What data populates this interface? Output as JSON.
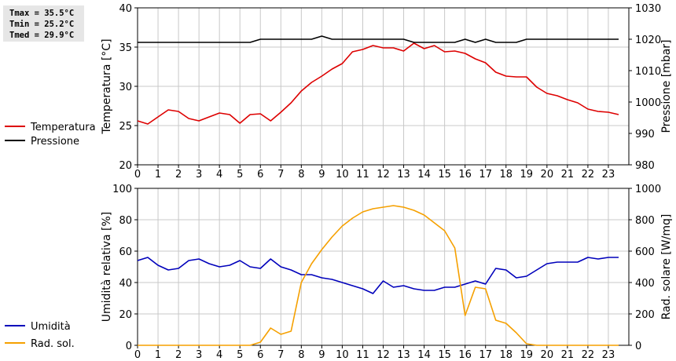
{
  "stats": {
    "tmax": "Tmax = 35.5°C",
    "tmin": "Tmin = 25.2°C",
    "tmed": "Tmed = 29.9°C"
  },
  "colors": {
    "temperature": "#dd0000",
    "pressure": "#000000",
    "humidity": "#0000bb",
    "solar": "#f5a000",
    "grid": "#c8c8c8"
  },
  "chart_data": [
    {
      "type": "line",
      "ylabel": "Temperatura [°C]",
      "y2label": "Pressione [mbar]",
      "xlim": [
        0,
        24
      ],
      "ylim": [
        20,
        40
      ],
      "y2lim": [
        980,
        1030
      ],
      "xticks": [
        0,
        1,
        2,
        3,
        4,
        5,
        6,
        7,
        8,
        9,
        10,
        11,
        12,
        13,
        14,
        15,
        16,
        17,
        18,
        19,
        20,
        21,
        22,
        23
      ],
      "yticks": [
        20,
        25,
        30,
        35,
        40
      ],
      "y2ticks": [
        980,
        990,
        1000,
        1010,
        1020,
        1030
      ],
      "grid": true,
      "legend": "left",
      "series": [
        {
          "name": "Temperatura",
          "axis": "left",
          "x": [
            0,
            0.5,
            1,
            1.5,
            2,
            2.5,
            3,
            3.5,
            4,
            4.5,
            5,
            5.5,
            6,
            6.5,
            7,
            7.5,
            8,
            8.5,
            9,
            9.5,
            10,
            10.5,
            11,
            11.5,
            12,
            12.5,
            13,
            13.5,
            14,
            14.5,
            15,
            15.5,
            16,
            16.5,
            17,
            17.5,
            18,
            18.5,
            19,
            19.5,
            20,
            20.5,
            21,
            21.5,
            22,
            22.5,
            23,
            23.5
          ],
          "y": [
            25.6,
            25.2,
            26.1,
            27.0,
            26.8,
            25.9,
            25.6,
            26.1,
            26.6,
            26.4,
            25.3,
            26.4,
            26.5,
            25.6,
            26.7,
            27.9,
            29.4,
            30.5,
            31.3,
            32.2,
            32.9,
            34.4,
            34.7,
            35.2,
            34.9,
            34.9,
            34.5,
            35.5,
            34.8,
            35.2,
            34.4,
            34.5,
            34.2,
            33.5,
            33.0,
            31.8,
            31.3,
            31.2,
            31.2,
            29.9,
            29.1,
            28.8,
            28.3,
            27.9,
            27.1,
            26.8,
            26.7,
            26.4
          ]
        },
        {
          "name": "Pressione",
          "axis": "right",
          "x": [
            0,
            0.5,
            1,
            1.5,
            2,
            2.5,
            3,
            3.5,
            4,
            4.5,
            5,
            5.5,
            6,
            6.5,
            7,
            7.5,
            8,
            8.5,
            9,
            9.5,
            10,
            10.5,
            11,
            11.5,
            12,
            12.5,
            13,
            13.5,
            14,
            14.5,
            15,
            15.5,
            16,
            16.5,
            17,
            17.5,
            18,
            18.5,
            19,
            19.5,
            20,
            20.5,
            21,
            21.5,
            22,
            22.5,
            23,
            23.5
          ],
          "y": [
            1019,
            1019,
            1019,
            1019,
            1019,
            1019,
            1019,
            1019,
            1019,
            1019,
            1019,
            1019,
            1020,
            1020,
            1020,
            1020,
            1020,
            1020,
            1021,
            1020,
            1020,
            1020,
            1020,
            1020,
            1020,
            1020,
            1020,
            1019,
            1019,
            1019,
            1019,
            1019,
            1020,
            1019,
            1020,
            1019,
            1019,
            1019,
            1020,
            1020,
            1020,
            1020,
            1020,
            1020,
            1020,
            1020,
            1020,
            1020
          ]
        }
      ]
    },
    {
      "type": "line",
      "ylabel": "Umidità relativa [%]",
      "y2label": "Rad. solare [W/mq]",
      "xlim": [
        0,
        24
      ],
      "ylim": [
        0,
        100
      ],
      "y2lim": [
        0,
        1000
      ],
      "xticks": [
        0,
        1,
        2,
        3,
        4,
        5,
        6,
        7,
        8,
        9,
        10,
        11,
        12,
        13,
        14,
        15,
        16,
        17,
        18,
        19,
        20,
        21,
        22,
        23
      ],
      "yticks": [
        0,
        20,
        40,
        60,
        80,
        100
      ],
      "y2ticks": [
        0,
        200,
        400,
        600,
        800,
        1000
      ],
      "grid": true,
      "legend": "left",
      "series": [
        {
          "name": "Umidità",
          "axis": "left",
          "x": [
            0,
            0.5,
            1,
            1.5,
            2,
            2.5,
            3,
            3.5,
            4,
            4.5,
            5,
            5.5,
            6,
            6.5,
            7,
            7.5,
            8,
            8.5,
            9,
            9.5,
            10,
            10.5,
            11,
            11.5,
            12,
            12.5,
            13,
            13.5,
            14,
            14.5,
            15,
            15.5,
            16,
            16.5,
            17,
            17.5,
            18,
            18.5,
            19,
            19.5,
            20,
            20.5,
            21,
            21.5,
            22,
            22.5,
            23,
            23.5
          ],
          "y": [
            54,
            56,
            51,
            48,
            49,
            54,
            55,
            52,
            50,
            51,
            54,
            50,
            49,
            55,
            50,
            48,
            45,
            45,
            43,
            42,
            40,
            38,
            36,
            33,
            41,
            37,
            38,
            36,
            35,
            35,
            37,
            37,
            39,
            41,
            39,
            49,
            48,
            43,
            44,
            48,
            52,
            53,
            53,
            53,
            56,
            55,
            56,
            56
          ]
        },
        {
          "name": "Rad. sol.",
          "axis": "right",
          "x": [
            0,
            0.5,
            1,
            1.5,
            2,
            2.5,
            3,
            3.5,
            4,
            4.5,
            5,
            5.5,
            6,
            6.5,
            7,
            7.5,
            8,
            8.5,
            9,
            9.5,
            10,
            10.5,
            11,
            11.5,
            12,
            12.5,
            13,
            13.5,
            14,
            14.5,
            15,
            15.5,
            16,
            16.5,
            17,
            17.5,
            18,
            18.5,
            19,
            19.5,
            20,
            20.5,
            21,
            21.5,
            22,
            22.5,
            23,
            23.5
          ],
          "y": [
            0,
            0,
            0,
            0,
            0,
            0,
            0,
            0,
            0,
            0,
            0,
            0,
            20,
            110,
            70,
            90,
            400,
            520,
            610,
            690,
            760,
            810,
            850,
            870,
            880,
            890,
            880,
            860,
            830,
            780,
            730,
            620,
            190,
            370,
            360,
            160,
            140,
            80,
            10,
            0,
            0,
            0,
            0,
            0,
            0,
            0,
            0,
            0
          ]
        }
      ]
    }
  ]
}
